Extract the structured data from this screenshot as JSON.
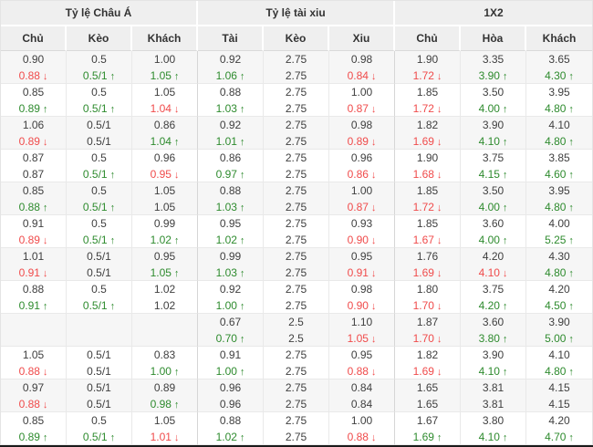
{
  "icons": {
    "up_arrow": "↑",
    "down_arrow": "↓"
  },
  "colors": {
    "up_green": "#2e8b2e",
    "down_red": "#f04b4b",
    "header_bg": "#efefef",
    "row_alt_bg": "#f6f6f6",
    "text": "#3f3f3f",
    "border": "#e9e9e9"
  },
  "table": {
    "header_groups": [
      {
        "name": "asian-odds",
        "label": "Tỷ lệ Châu Á",
        "cols": [
          "Chủ",
          "Kèo",
          "Khách"
        ]
      },
      {
        "name": "over-under",
        "label": "Tỷ lệ tài xiu",
        "cols": [
          "Tài",
          "Kèo",
          "Xiu"
        ]
      },
      {
        "name": "1x2",
        "label": "1X2",
        "cols": [
          "Chủ",
          "Hòa",
          "Khách"
        ]
      }
    ],
    "rows": [
      {
        "line1": [
          "0.90",
          "0.5",
          "1.00",
          "0.92",
          "2.75",
          "0.98",
          "1.90",
          "3.35",
          "3.65"
        ],
        "line2": [
          {
            "v": "0.88",
            "t": "d"
          },
          {
            "v": "0.5/1",
            "t": "u"
          },
          {
            "v": "1.05",
            "t": "u"
          },
          {
            "v": "1.06",
            "t": "u"
          },
          {
            "v": "2.75",
            "t": ""
          },
          {
            "v": "0.84",
            "t": "d"
          },
          {
            "v": "1.72",
            "t": "d"
          },
          {
            "v": "3.90",
            "t": "u"
          },
          {
            "v": "4.30",
            "t": "u"
          }
        ]
      },
      {
        "line1": [
          "0.85",
          "0.5",
          "1.05",
          "0.88",
          "2.75",
          "1.00",
          "1.85",
          "3.50",
          "3.95"
        ],
        "line2": [
          {
            "v": "0.89",
            "t": "u"
          },
          {
            "v": "0.5/1",
            "t": "u"
          },
          {
            "v": "1.04",
            "t": "d"
          },
          {
            "v": "1.03",
            "t": "u"
          },
          {
            "v": "2.75",
            "t": ""
          },
          {
            "v": "0.87",
            "t": "d"
          },
          {
            "v": "1.72",
            "t": "d"
          },
          {
            "v": "4.00",
            "t": "u"
          },
          {
            "v": "4.80",
            "t": "u"
          }
        ]
      },
      {
        "line1": [
          "1.06",
          "0.5/1",
          "0.86",
          "0.92",
          "2.75",
          "0.98",
          "1.82",
          "3.90",
          "4.10"
        ],
        "line2": [
          {
            "v": "0.89",
            "t": "d"
          },
          {
            "v": "0.5/1",
            "t": ""
          },
          {
            "v": "1.04",
            "t": "u"
          },
          {
            "v": "1.01",
            "t": "u"
          },
          {
            "v": "2.75",
            "t": ""
          },
          {
            "v": "0.89",
            "t": "d"
          },
          {
            "v": "1.69",
            "t": "d"
          },
          {
            "v": "4.10",
            "t": "u"
          },
          {
            "v": "4.80",
            "t": "u"
          }
        ]
      },
      {
        "line1": [
          "0.87",
          "0.5",
          "0.96",
          "0.86",
          "2.75",
          "0.96",
          "1.90",
          "3.75",
          "3.85"
        ],
        "line2": [
          {
            "v": "0.87",
            "t": ""
          },
          {
            "v": "0.5/1",
            "t": "u"
          },
          {
            "v": "0.95",
            "t": "d"
          },
          {
            "v": "0.97",
            "t": "u"
          },
          {
            "v": "2.75",
            "t": ""
          },
          {
            "v": "0.86",
            "t": "d"
          },
          {
            "v": "1.68",
            "t": "d"
          },
          {
            "v": "4.15",
            "t": "u"
          },
          {
            "v": "4.60",
            "t": "u"
          }
        ]
      },
      {
        "line1": [
          "0.85",
          "0.5",
          "1.05",
          "0.88",
          "2.75",
          "1.00",
          "1.85",
          "3.50",
          "3.95"
        ],
        "line2": [
          {
            "v": "0.88",
            "t": "u"
          },
          {
            "v": "0.5/1",
            "t": "u"
          },
          {
            "v": "1.05",
            "t": ""
          },
          {
            "v": "1.03",
            "t": "u"
          },
          {
            "v": "2.75",
            "t": ""
          },
          {
            "v": "0.87",
            "t": "d"
          },
          {
            "v": "1.72",
            "t": "d"
          },
          {
            "v": "4.00",
            "t": "u"
          },
          {
            "v": "4.80",
            "t": "u"
          }
        ]
      },
      {
        "line1": [
          "0.91",
          "0.5",
          "0.99",
          "0.95",
          "2.75",
          "0.93",
          "1.85",
          "3.60",
          "4.00"
        ],
        "line2": [
          {
            "v": "0.89",
            "t": "d"
          },
          {
            "v": "0.5/1",
            "t": "u"
          },
          {
            "v": "1.02",
            "t": "u"
          },
          {
            "v": "1.02",
            "t": "u"
          },
          {
            "v": "2.75",
            "t": ""
          },
          {
            "v": "0.90",
            "t": "d"
          },
          {
            "v": "1.67",
            "t": "d"
          },
          {
            "v": "4.00",
            "t": "u"
          },
          {
            "v": "5.25",
            "t": "u"
          }
        ]
      },
      {
        "line1": [
          "1.01",
          "0.5/1",
          "0.95",
          "0.99",
          "2.75",
          "0.95",
          "1.76",
          "4.20",
          "4.30"
        ],
        "line2": [
          {
            "v": "0.91",
            "t": "d"
          },
          {
            "v": "0.5/1",
            "t": ""
          },
          {
            "v": "1.05",
            "t": "u"
          },
          {
            "v": "1.03",
            "t": "u"
          },
          {
            "v": "2.75",
            "t": ""
          },
          {
            "v": "0.91",
            "t": "d"
          },
          {
            "v": "1.69",
            "t": "d"
          },
          {
            "v": "4.10",
            "t": "d"
          },
          {
            "v": "4.80",
            "t": "u"
          }
        ]
      },
      {
        "line1": [
          "0.88",
          "0.5",
          "1.02",
          "0.92",
          "2.75",
          "0.98",
          "1.80",
          "3.75",
          "4.20"
        ],
        "line2": [
          {
            "v": "0.91",
            "t": "u"
          },
          {
            "v": "0.5/1",
            "t": "u"
          },
          {
            "v": "1.02",
            "t": ""
          },
          {
            "v": "1.00",
            "t": "u"
          },
          {
            "v": "2.75",
            "t": ""
          },
          {
            "v": "0.90",
            "t": "d"
          },
          {
            "v": "1.70",
            "t": "d"
          },
          {
            "v": "4.20",
            "t": "u"
          },
          {
            "v": "4.50",
            "t": "u"
          }
        ]
      },
      {
        "line1": [
          "",
          "",
          "",
          "0.67",
          "2.5",
          "1.10",
          "1.87",
          "3.60",
          "3.90"
        ],
        "line2": [
          {
            "v": "",
            "t": ""
          },
          {
            "v": "",
            "t": ""
          },
          {
            "v": "",
            "t": ""
          },
          {
            "v": "0.70",
            "t": "u"
          },
          {
            "v": "2.5",
            "t": ""
          },
          {
            "v": "1.05",
            "t": "d"
          },
          {
            "v": "1.70",
            "t": "d"
          },
          {
            "v": "3.80",
            "t": "u"
          },
          {
            "v": "5.00",
            "t": "u"
          }
        ]
      },
      {
        "line1": [
          "1.05",
          "0.5/1",
          "0.83",
          "0.91",
          "2.75",
          "0.95",
          "1.82",
          "3.90",
          "4.10"
        ],
        "line2": [
          {
            "v": "0.88",
            "t": "d"
          },
          {
            "v": "0.5/1",
            "t": ""
          },
          {
            "v": "1.00",
            "t": "u"
          },
          {
            "v": "1.00",
            "t": "u"
          },
          {
            "v": "2.75",
            "t": ""
          },
          {
            "v": "0.88",
            "t": "d"
          },
          {
            "v": "1.69",
            "t": "d"
          },
          {
            "v": "4.10",
            "t": "u"
          },
          {
            "v": "4.80",
            "t": "u"
          }
        ]
      },
      {
        "line1": [
          "0.97",
          "0.5/1",
          "0.89",
          "0.96",
          "2.75",
          "0.84",
          "1.65",
          "3.81",
          "4.15"
        ],
        "line2": [
          {
            "v": "0.88",
            "t": "d"
          },
          {
            "v": "0.5/1",
            "t": ""
          },
          {
            "v": "0.98",
            "t": "u"
          },
          {
            "v": "0.96",
            "t": ""
          },
          {
            "v": "2.75",
            "t": ""
          },
          {
            "v": "0.84",
            "t": ""
          },
          {
            "v": "1.65",
            "t": ""
          },
          {
            "v": "3.81",
            "t": ""
          },
          {
            "v": "4.15",
            "t": ""
          }
        ]
      },
      {
        "line1": [
          "0.85",
          "0.5",
          "1.05",
          "0.88",
          "2.75",
          "1.00",
          "1.67",
          "3.80",
          "4.20"
        ],
        "line2": [
          {
            "v": "0.89",
            "t": "u"
          },
          {
            "v": "0.5/1",
            "t": "u"
          },
          {
            "v": "1.01",
            "t": "d"
          },
          {
            "v": "1.02",
            "t": "u"
          },
          {
            "v": "2.75",
            "t": ""
          },
          {
            "v": "0.88",
            "t": "d"
          },
          {
            "v": "1.69",
            "t": "u"
          },
          {
            "v": "4.10",
            "t": "u"
          },
          {
            "v": "4.70",
            "t": "u"
          }
        ]
      }
    ]
  }
}
